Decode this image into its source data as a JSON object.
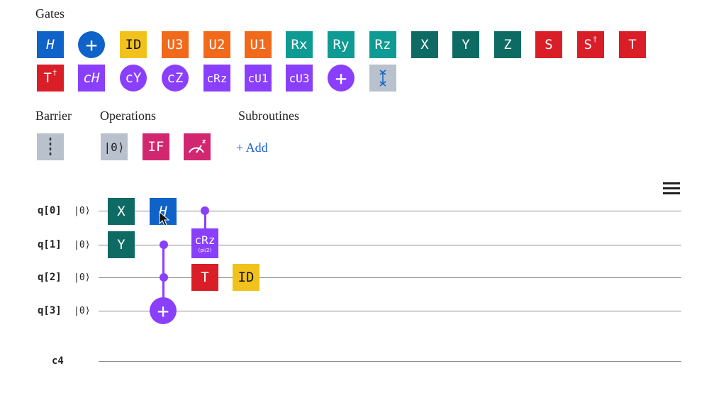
{
  "palette": {
    "sections": {
      "gates": "Gates",
      "barrier": "Barrier",
      "operations": "Operations",
      "subroutines": "Subroutines"
    },
    "gates_row1": [
      {
        "label": "H",
        "color": "#0f62c7",
        "name": "h-gate"
      },
      {
        "label": "+",
        "color": "#0f62c7",
        "name": "cnot-gate"
      },
      {
        "label": "ID",
        "color": "#f1c21b",
        "name": "id-gate"
      },
      {
        "label": "U3",
        "color": "#f1691b",
        "name": "u3-gate"
      },
      {
        "label": "U2",
        "color": "#f1691b",
        "name": "u2-gate"
      },
      {
        "label": "U1",
        "color": "#f1691b",
        "name": "u1-gate"
      },
      {
        "label": "Rx",
        "color": "#0e9b93",
        "name": "rx-gate"
      },
      {
        "label": "Ry",
        "color": "#0e9b93",
        "name": "ry-gate"
      },
      {
        "label": "Rz",
        "color": "#0e9b93",
        "name": "rz-gate"
      },
      {
        "label": "X",
        "color": "#0e6b64",
        "name": "x-gate"
      },
      {
        "label": "Y",
        "color": "#0e6b64",
        "name": "y-gate"
      },
      {
        "label": "Z",
        "color": "#0e6b64",
        "name": "z-gate"
      },
      {
        "label": "S",
        "color": "#da1e28",
        "name": "s-gate"
      },
      {
        "label": "S",
        "sup": "†",
        "color": "#da1e28",
        "name": "sdg-gate"
      },
      {
        "label": "T",
        "color": "#da1e28",
        "name": "t-gate"
      }
    ],
    "gates_row2": [
      {
        "label": "T",
        "sup": "†",
        "color": "#da1e28",
        "name": "tdg-gate"
      },
      {
        "label": "cH",
        "color": "#8a3ffc",
        "name": "ch-gate"
      },
      {
        "label": "cY",
        "color": "#8a3ffc",
        "name": "cy-gate"
      },
      {
        "label": "cZ",
        "color": "#8a3ffc",
        "name": "cz-gate"
      },
      {
        "label": "cRz",
        "color": "#8a3ffc",
        "name": "crz-gate"
      },
      {
        "label": "cU1",
        "color": "#8a3ffc",
        "name": "cu1-gate"
      },
      {
        "label": "cU3",
        "color": "#8a3ffc",
        "name": "cu3-gate"
      },
      {
        "label": "+",
        "color": "#8a3ffc",
        "name": "toffoli-gate"
      },
      {
        "label": "",
        "color": "#b8c1cc",
        "name": "swap-gate"
      }
    ],
    "operations": [
      {
        "label": "|0⟩",
        "color": "#b8c1cc",
        "name": "reset-operation"
      },
      {
        "label": "IF",
        "color": "#d12771",
        "name": "if-operation"
      },
      {
        "label": "",
        "color": "#d12771",
        "name": "measure-operation"
      }
    ],
    "add_label": "+ Add"
  },
  "circuit": {
    "qubits": [
      {
        "label": "q[0]",
        "init": "|0⟩"
      },
      {
        "label": "q[1]",
        "init": "|0⟩"
      },
      {
        "label": "q[2]",
        "init": "|0⟩"
      },
      {
        "label": "q[3]",
        "init": "|0⟩"
      }
    ],
    "classical": {
      "label": "c4"
    },
    "placed_gates": [
      {
        "label": "X",
        "qubit": 0,
        "color": "#0e6b64"
      },
      {
        "label": "H",
        "qubit": 0,
        "color": "#0f62c7"
      },
      {
        "label": "Y",
        "qubit": 1,
        "color": "#0e6b64"
      },
      {
        "label": "cRz",
        "param": "(pi/2)",
        "qubit": 1,
        "color": "#8a3ffc"
      },
      {
        "label": "T",
        "qubit": 2,
        "color": "#da1e28"
      },
      {
        "label": "ID",
        "qubit": 2,
        "color": "#f1c21b"
      },
      {
        "label": "+",
        "qubit": 3,
        "color": "#8a3ffc"
      }
    ]
  }
}
